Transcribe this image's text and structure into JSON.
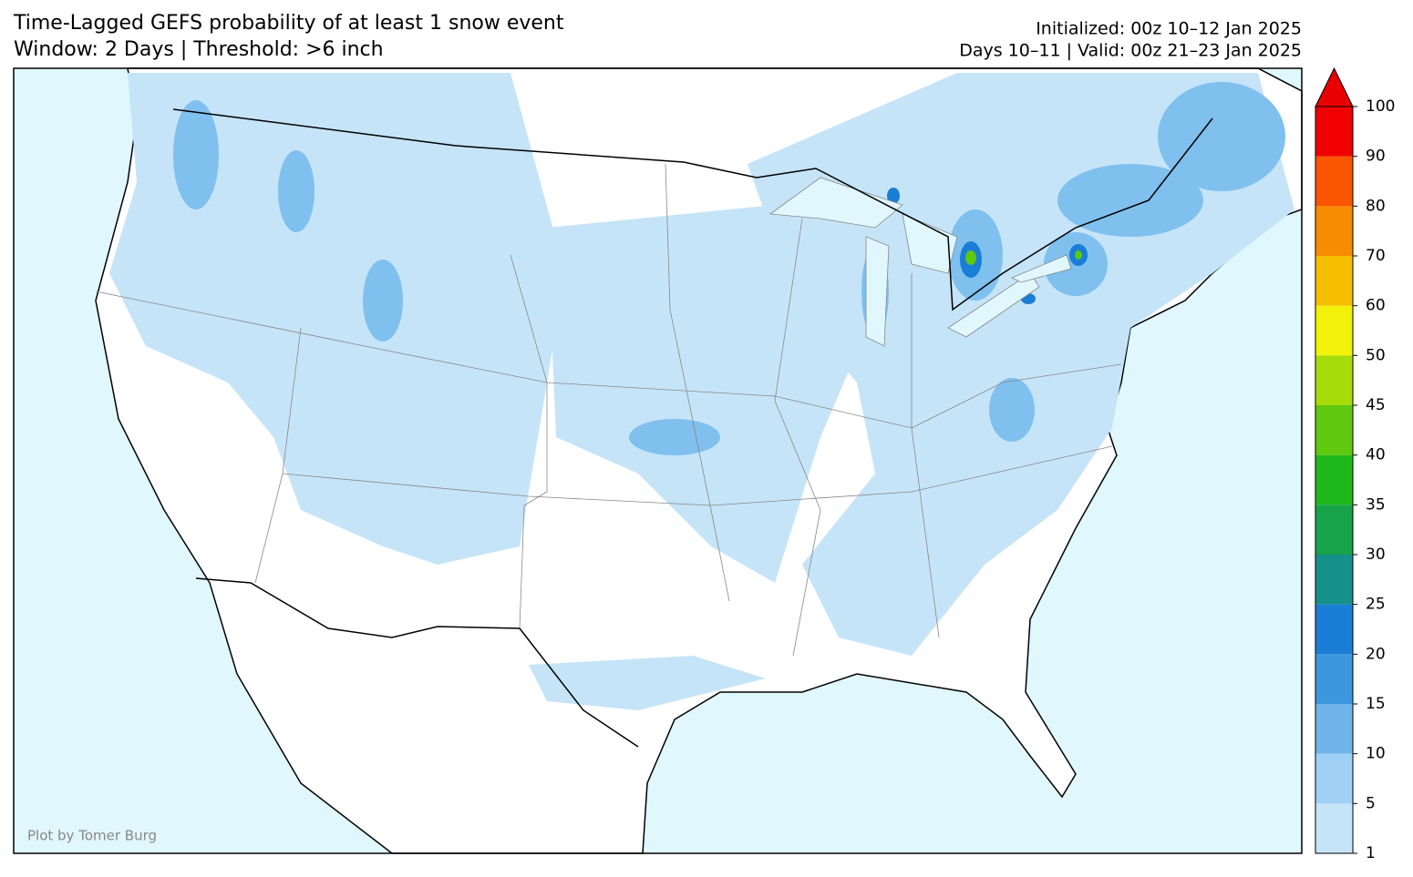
{
  "header": {
    "title": "Time-Lagged GEFS probability of at least 1 snow event",
    "subtitle": "Window: 2 Days | Threshold: >6 inch",
    "initialized": "Initialized: 00z 10–12 Jan 2025",
    "valid": "Days 10–11 | Valid: 00z 21–23 Jan 2025"
  },
  "colorbar": {
    "ticks": [
      1,
      5,
      10,
      15,
      20,
      25,
      30,
      35,
      40,
      45,
      50,
      60,
      70,
      80,
      90,
      100
    ],
    "colors": [
      "#c6e4f8",
      "#a0d0f5",
      "#6fb5ea",
      "#3d97dc",
      "#1a7ed6",
      "#15908a",
      "#17a34a",
      "#1fb81a",
      "#5fc80f",
      "#a6dc0a",
      "#f1f10a",
      "#f5be00",
      "#f88c00",
      "#fa5500",
      "#f00000"
    ],
    "extend_color": "#e80000"
  },
  "credit": "Plot by Tomer Burg"
}
